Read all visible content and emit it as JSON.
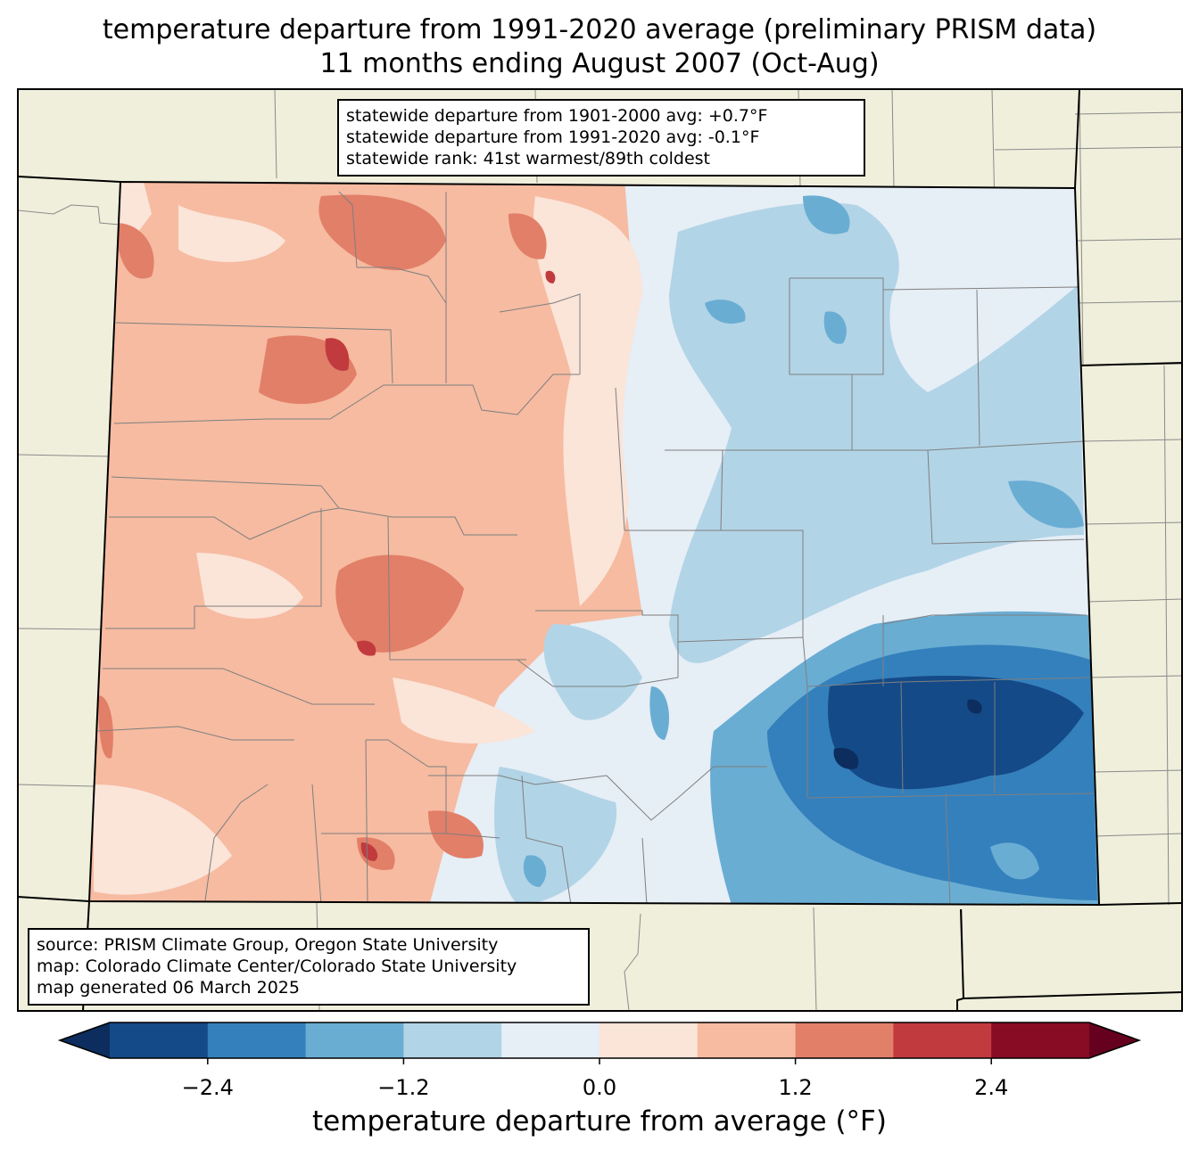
{
  "title": {
    "line1": "temperature departure from 1991-2020 average (preliminary PRISM data)",
    "line2": "11 months ending August 2007 (Oct-Aug)"
  },
  "stats": {
    "line1": "statewide departure from 1901-2000 avg: +0.7°F",
    "line2": "statewide departure from 1991-2020 avg: -0.1°F",
    "line3": "statewide rank: 41st warmest/89th coldest"
  },
  "credits": {
    "line1": "source: PRISM Climate Group, Oregon State University",
    "line2": "map: Colorado Climate Center/Colorado State University",
    "line3": "map generated 06 March 2025"
  },
  "colorbar": {
    "label": "temperature departure from average (°F)",
    "ticks": [
      "−2.4",
      "−1.2",
      "0.0",
      "1.2",
      "2.4"
    ],
    "tick_values": [
      -2.4,
      -1.2,
      0.0,
      1.2,
      2.4
    ],
    "range": [
      -3.0,
      3.0
    ],
    "step": 0.6,
    "colors": [
      "#0c2d5e",
      "#144a87",
      "#3480bc",
      "#6aadd3",
      "#b2d4e7",
      "#e6eef6",
      "#fbe4d8",
      "#f6bba1",
      "#e27f68",
      "#c13a3e",
      "#890c25",
      "#65011e"
    ]
  },
  "map": {
    "background": "#efefdc",
    "region": "Colorado"
  }
}
